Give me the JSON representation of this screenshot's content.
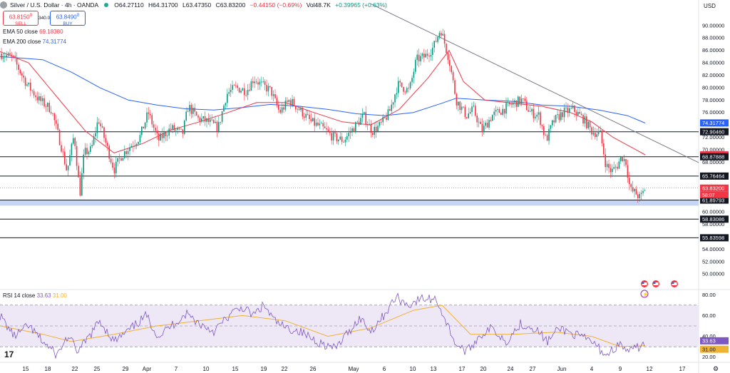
{
  "header": {
    "title": "Silver / U.S. Dollar · 4h · OANDA",
    "open": "O64.27110",
    "high": "H64.31700",
    "low": "L63.47350",
    "close": "C63.83200",
    "change": "−0.44150 (−0.69%)",
    "volume": "Vol48.7K",
    "volume_change": "+0.39965 (+0.63%)"
  },
  "trade": {
    "sell_price": "63.8150",
    "sell_sup": "0",
    "sell_label": "SELL",
    "buy_price": "63.8490",
    "buy_sup": "0",
    "buy_label": "BUY",
    "spread": "340.0"
  },
  "legend": {
    "ema50_label": "EMA 50 close",
    "ema50_value": "69.18380",
    "ema200_label": "EMA 200 close",
    "ema200_value": "74.31774",
    "rsi_label": "RSI 14 close",
    "rsi_value": "33.63",
    "rsi_ma_value": "31.00"
  },
  "currency": "USD",
  "colors": {
    "up": "#089981",
    "down": "#f23645",
    "ema50": "#f23645",
    "ema200": "#2962ff",
    "rsi": "#7e57c2",
    "rsi_ma": "#f0b232",
    "rsi_band": "#ede7f6",
    "support_band": "#c5d5f5"
  },
  "chart_data": [
    {
      "type": "candlestick",
      "title": "Silver / U.S. Dollar · 4h · OANDA",
      "ylim": [
        47.5,
        92.5
      ],
      "y_ticks": [
        "90.00000",
        "88.00000",
        "86.00000",
        "84.00000",
        "82.00000",
        "80.00000",
        "78.00000",
        "76.00000",
        "74.00000",
        "72.00000",
        "70.00000",
        "68.00000",
        "66.00000",
        "64.00000",
        "62.00000",
        "60.00000",
        "58.00000",
        "56.00000",
        "54.00000",
        "52.00000",
        "50.00000"
      ],
      "x_ticks": [
        "15",
        "18",
        "22",
        "25",
        "29",
        "Apr",
        "7",
        "10",
        "15",
        "19",
        "22",
        "26",
        "May",
        "6",
        "10",
        "13",
        "17",
        "20",
        "24",
        "27",
        "Jun",
        "4",
        "9",
        "12",
        "17"
      ],
      "anchors": [
        [
          0,
          85.5
        ],
        [
          18,
          84.8
        ],
        [
          38,
          80.5
        ],
        [
          55,
          78.0
        ],
        [
          72,
          76.5
        ],
        [
          86,
          70.5
        ],
        [
          94,
          66.5
        ],
        [
          104,
          72.5
        ],
        [
          112,
          62.8
        ],
        [
          118,
          69.5
        ],
        [
          128,
          70.0
        ],
        [
          138,
          75.0
        ],
        [
          150,
          70.5
        ],
        [
          160,
          66.8
        ],
        [
          170,
          69.0
        ],
        [
          182,
          70.5
        ],
        [
          196,
          72.0
        ],
        [
          208,
          76.0
        ],
        [
          222,
          71.5
        ],
        [
          240,
          73.5
        ],
        [
          256,
          72.5
        ],
        [
          264,
          77.0
        ],
        [
          278,
          75.0
        ],
        [
          292,
          74.5
        ],
        [
          306,
          73.5
        ],
        [
          318,
          79.0
        ],
        [
          330,
          80.0
        ],
        [
          346,
          79.5
        ],
        [
          356,
          81.5
        ],
        [
          366,
          80.5
        ],
        [
          380,
          79.5
        ],
        [
          392,
          76.0
        ],
        [
          406,
          78.0
        ],
        [
          420,
          76.5
        ],
        [
          436,
          74.5
        ],
        [
          452,
          73.5
        ],
        [
          468,
          72.0
        ],
        [
          482,
          71.5
        ],
        [
          496,
          73.5
        ],
        [
          510,
          75.5
        ],
        [
          522,
          73.0
        ],
        [
          534,
          74.0
        ],
        [
          546,
          76.0
        ],
        [
          558,
          80.5
        ],
        [
          574,
          79.5
        ],
        [
          584,
          84.5
        ],
        [
          596,
          85.0
        ],
        [
          608,
          86.5
        ],
        [
          618,
          89.5
        ],
        [
          630,
          84.5
        ],
        [
          640,
          78.0
        ],
        [
          654,
          75.5
        ],
        [
          664,
          76.5
        ],
        [
          676,
          73.0
        ],
        [
          690,
          75.5
        ],
        [
          706,
          76.5
        ],
        [
          720,
          77.5
        ],
        [
          732,
          78.0
        ],
        [
          744,
          76.0
        ],
        [
          756,
          75.5
        ],
        [
          766,
          71.5
        ],
        [
          776,
          74.5
        ],
        [
          790,
          76.0
        ],
        [
          804,
          76.5
        ],
        [
          818,
          75.0
        ],
        [
          830,
          73.0
        ],
        [
          842,
          72.5
        ],
        [
          850,
          67.5
        ],
        [
          858,
          66.5
        ],
        [
          866,
          67.5
        ],
        [
          872,
          69.0
        ],
        [
          878,
          68.0
        ],
        [
          884,
          63.5
        ],
        [
          892,
          63.0
        ],
        [
          898,
          62.2
        ],
        [
          905,
          63.8
        ]
      ],
      "ema50": [
        [
          0,
          85.8
        ],
        [
          40,
          84.0
        ],
        [
          80,
          78.5
        ],
        [
          120,
          73.0
        ],
        [
          160,
          69.5
        ],
        [
          200,
          71.0
        ],
        [
          240,
          73.2
        ],
        [
          280,
          74.5
        ],
        [
          320,
          76.0
        ],
        [
          360,
          77.6
        ],
        [
          400,
          77.6
        ],
        [
          440,
          76.0
        ],
        [
          480,
          74.5
        ],
        [
          520,
          74.0
        ],
        [
          560,
          76.5
        ],
        [
          600,
          81.5
        ],
        [
          630,
          86.0
        ],
        [
          650,
          81.0
        ],
        [
          680,
          78.0
        ],
        [
          720,
          77.5
        ],
        [
          760,
          77.0
        ],
        [
          800,
          76.0
        ],
        [
          830,
          74.5
        ],
        [
          860,
          72.0
        ],
        [
          905,
          69.2
        ]
      ],
      "ema200": [
        [
          0,
          85.0
        ],
        [
          60,
          84.5
        ],
        [
          100,
          82.5
        ],
        [
          140,
          80.0
        ],
        [
          180,
          78.0
        ],
        [
          220,
          77.2
        ],
        [
          260,
          76.6
        ],
        [
          300,
          76.4
        ],
        [
          340,
          76.8
        ],
        [
          380,
          77.3
        ],
        [
          420,
          77.0
        ],
        [
          460,
          76.5
        ],
        [
          500,
          75.8
        ],
        [
          540,
          75.5
        ],
        [
          580,
          76.0
        ],
        [
          620,
          77.5
        ],
        [
          640,
          78.3
        ],
        [
          680,
          78.0
        ],
        [
          720,
          77.8
        ],
        [
          760,
          77.2
        ],
        [
          800,
          77.0
        ],
        [
          840,
          76.4
        ],
        [
          880,
          75.5
        ],
        [
          905,
          74.3
        ]
      ],
      "trendline": [
        [
          520,
          93.5
        ],
        [
          1024,
          65.5
        ]
      ],
      "horizontal_levels": [
        72.9046,
        68.87888,
        65.76464,
        58.83086,
        55.83598
      ],
      "support_band": [
        61.0,
        61.9
      ],
      "last_price": 63.832,
      "price_labels": [
        {
          "value": 74.31774,
          "text": "74.31774",
          "color": "#2962ff"
        },
        {
          "value": 72.9046,
          "text": "72.90460",
          "color": "#131722"
        },
        {
          "value": 69.1838,
          "text": "69.18380",
          "color": "#f23645"
        },
        {
          "value": 68.87888,
          "text": "68.87888",
          "color": "#131722"
        },
        {
          "value": 65.76464,
          "text": "65.76464",
          "color": "#131722"
        },
        {
          "value": 63.832,
          "text": "63.83200",
          "color": "#f23645"
        },
        {
          "value": 61.89793,
          "text": "61.89793",
          "color": "#131722"
        },
        {
          "value": 58.83086,
          "text": "58.83086",
          "color": "#131722"
        },
        {
          "value": 55.83598,
          "text": "55.83598",
          "color": "#131722"
        }
      ],
      "countdown": "58:07",
      "events": [
        "lightning",
        "us-flag",
        "us-flag",
        "us-flag"
      ]
    },
    {
      "type": "line",
      "title": "RSI 14 close",
      "ylim": [
        15,
        85
      ],
      "y_ticks": [
        "80.00",
        "60.00",
        "40.00",
        "20.00"
      ],
      "bands": [
        70,
        50,
        30
      ],
      "rsi_anchors": [
        [
          0,
          60
        ],
        [
          20,
          40
        ],
        [
          40,
          50
        ],
        [
          60,
          35
        ],
        [
          80,
          22
        ],
        [
          95,
          40
        ],
        [
          110,
          25
        ],
        [
          125,
          40
        ],
        [
          140,
          55
        ],
        [
          160,
          35
        ],
        [
          180,
          45
        ],
        [
          205,
          60
        ],
        [
          222,
          40
        ],
        [
          240,
          50
        ],
        [
          262,
          62
        ],
        [
          280,
          52
        ],
        [
          300,
          45
        ],
        [
          325,
          62
        ],
        [
          340,
          68
        ],
        [
          355,
          60
        ],
        [
          370,
          70
        ],
        [
          385,
          55
        ],
        [
          400,
          48
        ],
        [
          420,
          45
        ],
        [
          445,
          35
        ],
        [
          470,
          28
        ],
        [
          490,
          45
        ],
        [
          505,
          58
        ],
        [
          520,
          45
        ],
        [
          538,
          60
        ],
        [
          556,
          78
        ],
        [
          572,
          70
        ],
        [
          590,
          76
        ],
        [
          612,
          76
        ],
        [
          625,
          55
        ],
        [
          640,
          32
        ],
        [
          655,
          25
        ],
        [
          672,
          40
        ],
        [
          690,
          48
        ],
        [
          710,
          35
        ],
        [
          730,
          52
        ],
        [
          750,
          48
        ],
        [
          768,
          35
        ],
        [
          785,
          48
        ],
        [
          805,
          42
        ],
        [
          830,
          35
        ],
        [
          850,
          22
        ],
        [
          868,
          32
        ],
        [
          884,
          25
        ],
        [
          905,
          33.6
        ]
      ],
      "ma_anchors": [
        [
          0,
          50
        ],
        [
          60,
          42
        ],
        [
          100,
          35
        ],
        [
          160,
          42
        ],
        [
          220,
          50
        ],
        [
          280,
          55
        ],
        [
          340,
          60
        ],
        [
          400,
          55
        ],
        [
          460,
          40
        ],
        [
          520,
          48
        ],
        [
          580,
          65
        ],
        [
          620,
          70
        ],
        [
          660,
          42
        ],
        [
          720,
          42
        ],
        [
          780,
          44
        ],
        [
          830,
          40
        ],
        [
          870,
          30
        ],
        [
          905,
          31
        ]
      ],
      "labels": [
        {
          "value": 33.63,
          "text": "33.63",
          "bg": "#7e57c2",
          "fg": "#ffffff"
        },
        {
          "value": 31.0,
          "text": "31.00",
          "bg": "#f0b232",
          "fg": "#131722"
        }
      ]
    }
  ]
}
